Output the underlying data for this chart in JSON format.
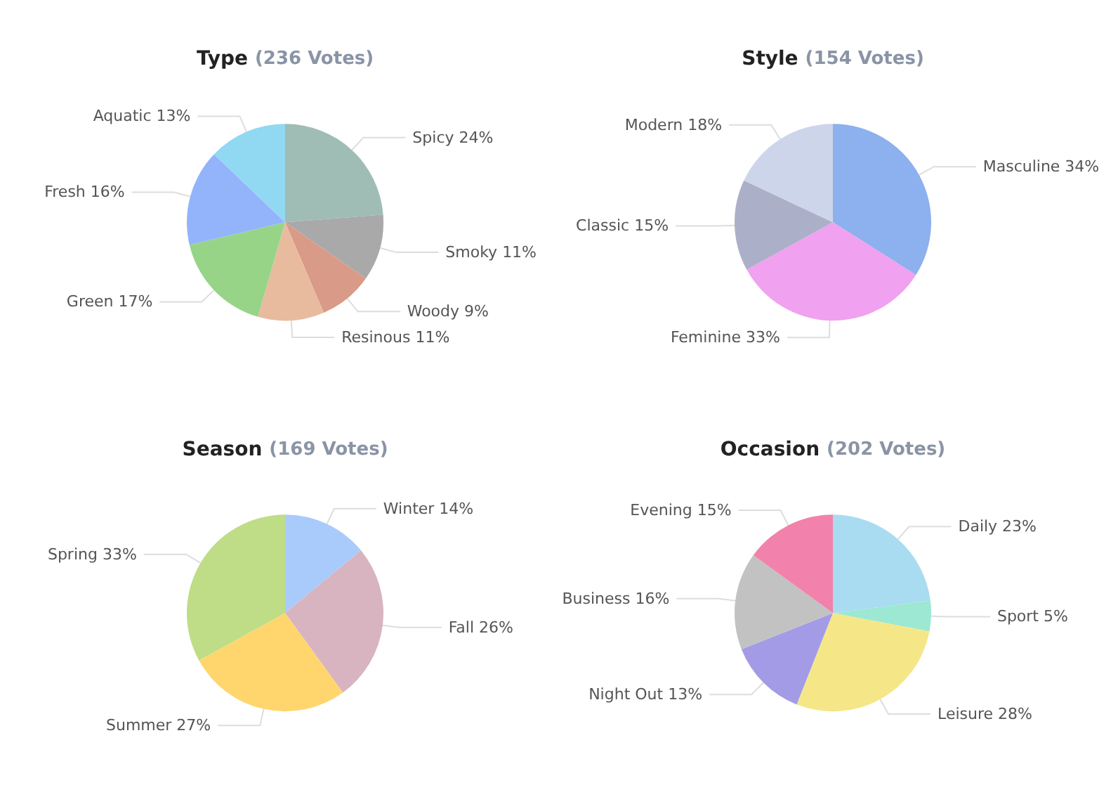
{
  "chart_data": [
    {
      "type": "pie",
      "title": "Type",
      "subtitle": "(236 Votes)",
      "categories": [
        "Spicy",
        "Smoky",
        "Woody",
        "Resinous",
        "Green",
        "Fresh",
        "Aquatic"
      ],
      "values": [
        24,
        11,
        9,
        11,
        17,
        16,
        13
      ],
      "value_labels": [
        "24%",
        "11%",
        "9%",
        "11%",
        "17%",
        "16%",
        "13%"
      ],
      "colors": [
        "#9fbcb5",
        "#a9a9a9",
        "#d99a88",
        "#e8bb9f",
        "#98d488",
        "#93b4fb",
        "#91d8f2"
      ]
    },
    {
      "type": "pie",
      "title": "Style",
      "subtitle": "(154 Votes)",
      "categories": [
        "Masculine",
        "Feminine",
        "Classic",
        "Modern"
      ],
      "values": [
        34,
        33,
        15,
        18
      ],
      "value_labels": [
        "34%",
        "33%",
        "15%",
        "18%"
      ],
      "colors": [
        "#8db0ee",
        "#f0a1ef",
        "#abb0c8",
        "#cdd5ea"
      ]
    },
    {
      "type": "pie",
      "title": "Season",
      "subtitle": "(169 Votes)",
      "categories": [
        "Winter",
        "Fall",
        "Summer",
        "Spring"
      ],
      "values": [
        14,
        26,
        27,
        33
      ],
      "value_labels": [
        "14%",
        "26%",
        "27%",
        "33%"
      ],
      "colors": [
        "#a9cbfb",
        "#d8b4c0",
        "#ffd66e",
        "#bedd86"
      ]
    },
    {
      "type": "pie",
      "title": "Occasion",
      "subtitle": "(202 Votes)",
      "categories": [
        "Daily",
        "Sport",
        "Leisure",
        "Night Out",
        "Business",
        "Evening"
      ],
      "values": [
        23,
        5,
        28,
        13,
        16,
        15
      ],
      "value_labels": [
        "23%",
        "5%",
        "28%",
        "13%",
        "16%",
        "15%"
      ],
      "colors": [
        "#a9dcf0",
        "#9ce8d3",
        "#f5e788",
        "#a49be6",
        "#c2c2c2",
        "#f282ab"
      ]
    }
  ]
}
